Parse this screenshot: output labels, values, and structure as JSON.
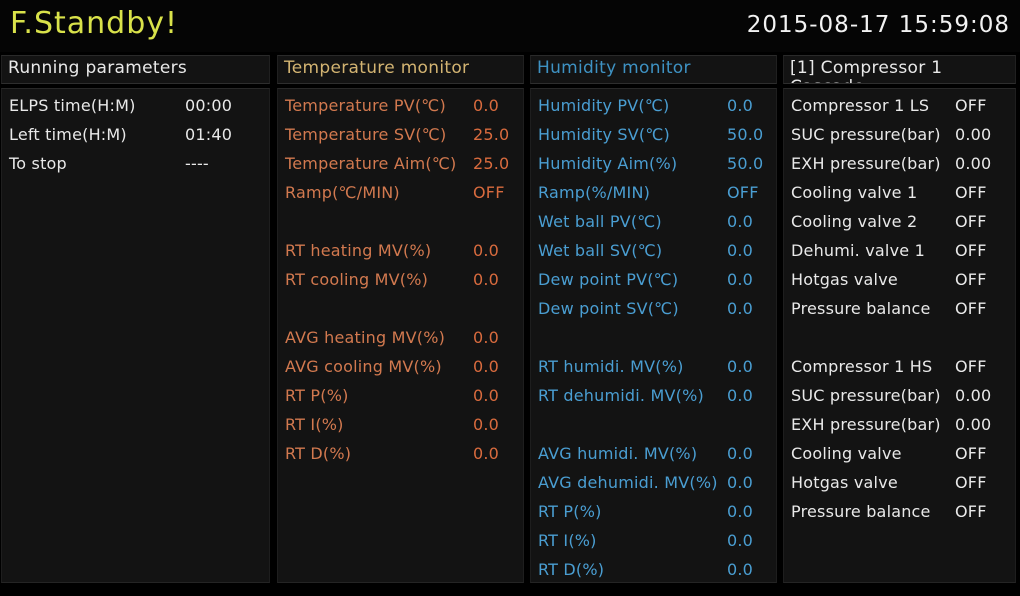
{
  "app": {
    "status_title": "F.Standby!",
    "datetime": "2015-08-17 15:59:08"
  },
  "colors": {
    "background": "#000000",
    "panel_background": "#131313",
    "status_title": "#d9e24a",
    "datetime_text": "#f2f2f2",
    "white_text": "#e9e9e9",
    "temperature_header": "#d3b472",
    "temperature_label": "#d2794f",
    "temperature_value": "#d96b3e",
    "humidity_header": "#3e92c3",
    "humidity_text": "#4a9ed2"
  },
  "panels": [
    {
      "id": "running-parameters",
      "title": "Running parameters",
      "subtitle": "",
      "header_color": "#e9e9e9",
      "label_color": "#e9e9e9",
      "value_color": "#e9e9e9",
      "rows": [
        {
          "label": "ELPS time(H:M)",
          "value": "00:00"
        },
        {
          "label": "Left time(H:M)",
          "value": "01:40"
        },
        {
          "label": "To stop",
          "value": "----"
        }
      ]
    },
    {
      "id": "temperature-monitor",
      "title": "Temperature monitor",
      "subtitle": "",
      "header_color": "#d3b472",
      "label_color": "#d2794f",
      "value_color": "#d96b3e",
      "rows": [
        {
          "label": "Temperature PV(℃)",
          "value": "0.0"
        },
        {
          "label": "Temperature SV(℃)",
          "value": "25.0"
        },
        {
          "label": "Temperature Aim(℃)",
          "value": "25.0"
        },
        {
          "label": "Ramp(℃/MIN)",
          "value": "OFF"
        },
        {
          "label": "",
          "value": ""
        },
        {
          "label": "RT heating MV(%)",
          "value": "0.0"
        },
        {
          "label": "RT cooling MV(%)",
          "value": "0.0"
        },
        {
          "label": "",
          "value": ""
        },
        {
          "label": "AVG heating MV(%)",
          "value": "0.0"
        },
        {
          "label": "AVG cooling MV(%)",
          "value": "0.0"
        },
        {
          "label": "RT P(%)",
          "value": "0.0"
        },
        {
          "label": "RT I(%)",
          "value": "0.0"
        },
        {
          "label": "RT D(%)",
          "value": "0.0"
        }
      ]
    },
    {
      "id": "humidity-monitor",
      "title": "Humidity monitor",
      "subtitle": "",
      "header_color": "#3e92c3",
      "label_color": "#4a9ed2",
      "value_color": "#4a9ed2",
      "rows": [
        {
          "label": "Humidity PV(℃)",
          "value": "0.0"
        },
        {
          "label": "Humidity SV(℃)",
          "value": "50.0"
        },
        {
          "label": "Humidity Aim(%)",
          "value": "50.0"
        },
        {
          "label": "Ramp(%/MIN)",
          "value": "OFF"
        },
        {
          "label": "Wet ball PV(℃)",
          "value": "0.0"
        },
        {
          "label": "Wet ball SV(℃)",
          "value": "0.0"
        },
        {
          "label": "Dew point PV(℃)",
          "value": "0.0"
        },
        {
          "label": "Dew point SV(℃)",
          "value": "0.0"
        },
        {
          "label": "",
          "value": ""
        },
        {
          "label": "RT humidi. MV(%)",
          "value": "0.0"
        },
        {
          "label": "RT dehumidi. MV(%)",
          "value": "0.0"
        },
        {
          "label": "",
          "value": ""
        },
        {
          "label": "AVG humidi. MV(%)",
          "value": "0.0"
        },
        {
          "label": "AVG dehumidi. MV(%)",
          "value": "0.0"
        },
        {
          "label": "RT P(%)",
          "value": "0.0"
        },
        {
          "label": "RT I(%)",
          "value": "0.0"
        },
        {
          "label": "RT D(%)",
          "value": "0.0"
        }
      ]
    },
    {
      "id": "compressor-1-cascade",
      "title": "[1] Compressor 1",
      "subtitle": "Cascade",
      "header_color": "#e9e9e9",
      "label_color": "#e9e9e9",
      "value_color": "#e9e9e9",
      "rows": [
        {
          "label": "Compressor 1 LS",
          "value": "OFF"
        },
        {
          "label": "SUC pressure(bar)",
          "value": "0.00"
        },
        {
          "label": "EXH pressure(bar)",
          "value": "0.00"
        },
        {
          "label": "Cooling valve 1",
          "value": "OFF"
        },
        {
          "label": "Cooling valve 2",
          "value": "OFF"
        },
        {
          "label": "Dehumi. valve 1",
          "value": "OFF"
        },
        {
          "label": "Hotgas valve",
          "value": "OFF"
        },
        {
          "label": "Pressure balance",
          "value": "OFF"
        },
        {
          "label": "",
          "value": ""
        },
        {
          "label": "Compressor 1 HS",
          "value": "OFF"
        },
        {
          "label": "SUC pressure(bar)",
          "value": "0.00"
        },
        {
          "label": "EXH pressure(bar)",
          "value": "0.00"
        },
        {
          "label": "Cooling valve",
          "value": "OFF"
        },
        {
          "label": "Hotgas valve",
          "value": "OFF"
        },
        {
          "label": "Pressure balance",
          "value": "OFF"
        }
      ]
    }
  ]
}
